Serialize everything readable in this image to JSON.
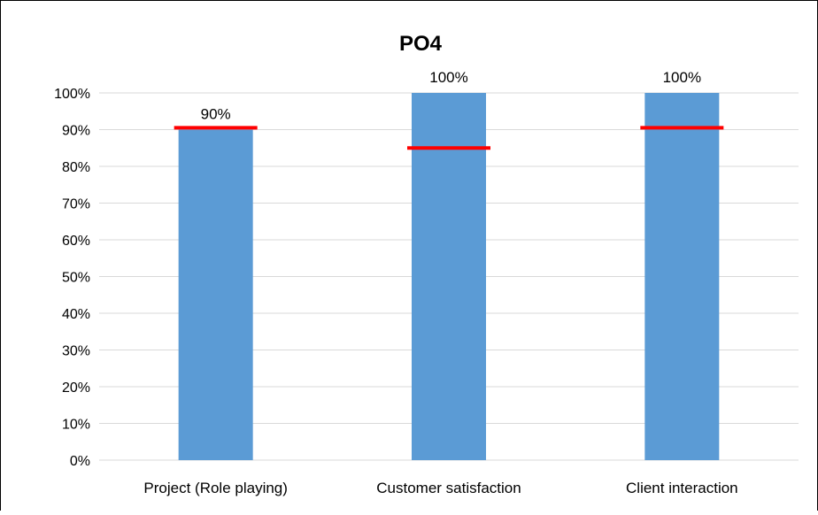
{
  "chart_data": {
    "type": "bar",
    "title": "PO4",
    "xlabel": "",
    "ylabel": "",
    "categories": [
      "Project (Role playing)",
      "Customer satisfaction",
      "Client interaction"
    ],
    "series": [
      {
        "values": [
          90,
          100,
          100
        ]
      }
    ],
    "data_labels": [
      "90%",
      "100%",
      "100%"
    ],
    "target_markers": [
      90.5,
      85,
      90.5
    ],
    "ylim": [
      0,
      100
    ],
    "yticks": [
      0,
      10,
      20,
      30,
      40,
      50,
      60,
      70,
      80,
      90,
      100
    ],
    "ytick_labels": [
      "0%",
      "10%",
      "20%",
      "30%",
      "40%",
      "50%",
      "60%",
      "70%",
      "80%",
      "90%",
      "100%"
    ],
    "grid": true,
    "legend": "none",
    "colors": {
      "bar": "#5b9bd5",
      "target": "#ff0000",
      "grid": "#d9d9d9",
      "border": "#000000"
    }
  }
}
